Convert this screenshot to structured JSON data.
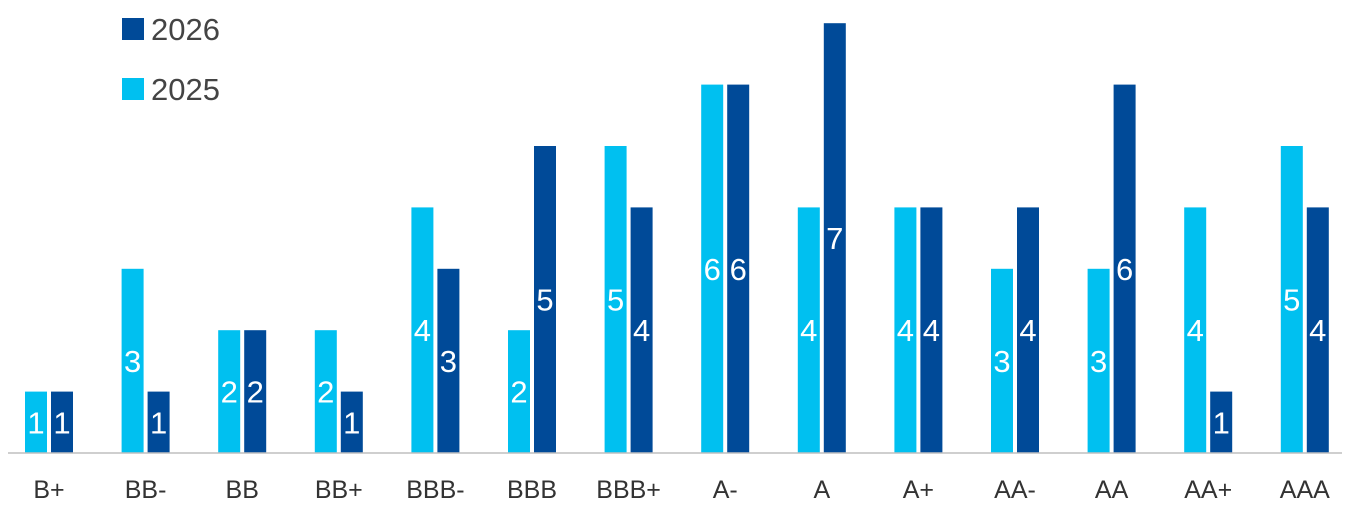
{
  "chart_data": {
    "type": "bar",
    "categories": [
      "B+",
      "BB-",
      "BB",
      "BB+",
      "BBB-",
      "BBB",
      "BBB+",
      "A-",
      "A",
      "A+",
      "AA-",
      "AA",
      "AA+",
      "AAA"
    ],
    "series": [
      {
        "name": "2025",
        "color": "#00C0F0",
        "values": [
          1,
          3,
          2,
          2,
          4,
          2,
          5,
          6,
          4,
          4,
          3,
          3,
          4,
          5
        ]
      },
      {
        "name": "2026",
        "color": "#004A98",
        "values": [
          1,
          1,
          2,
          1,
          3,
          5,
          4,
          6,
          7,
          4,
          4,
          6,
          1,
          4
        ]
      }
    ],
    "legend": {
      "placement": "top-left",
      "order": [
        "2026",
        "2025"
      ]
    },
    "ylim": [
      0,
      7
    ],
    "grid": false,
    "data_labels": true,
    "title": "",
    "xlabel": "",
    "ylabel": ""
  }
}
